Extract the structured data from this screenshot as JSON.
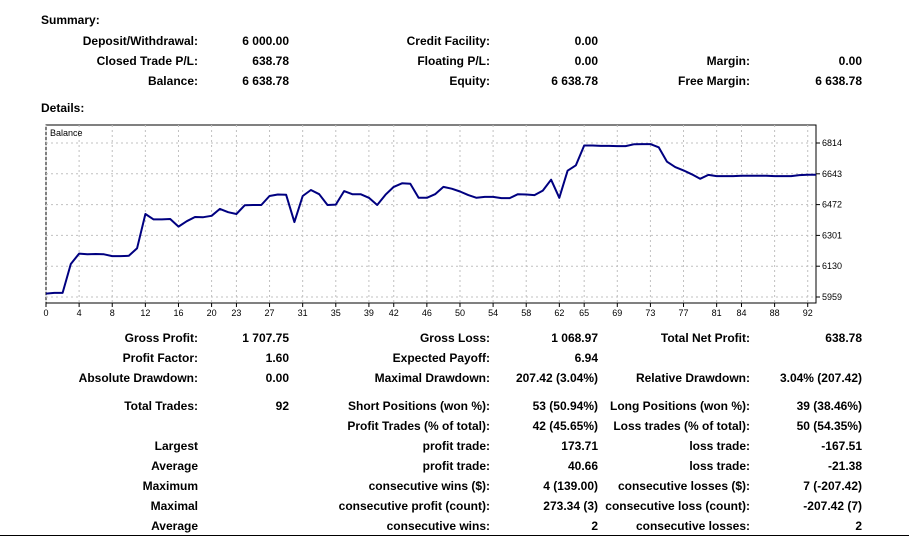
{
  "summary": {
    "title": "Summary:",
    "deposit_label": "Deposit/Withdrawal:",
    "deposit_value": "6 000.00",
    "credit_label": "Credit Facility:",
    "credit_value": "0.00",
    "closed_label": "Closed Trade P/L:",
    "closed_value": "638.78",
    "floating_label": "Floating P/L:",
    "floating_value": "0.00",
    "margin_label": "Margin:",
    "margin_value": "0.00",
    "balance_label": "Balance:",
    "balance_value": "6 638.78",
    "equity_label": "Equity:",
    "equity_value": "6 638.78",
    "free_margin_label": "Free Margin:",
    "free_margin_value": "6 638.78"
  },
  "details": {
    "title": "Details:"
  },
  "chart_data": {
    "type": "line",
    "title": "",
    "legend": "Balance",
    "color": "#000080",
    "x_ticks": [
      "0",
      "4",
      "8",
      "12",
      "16",
      "20",
      "23",
      "27",
      "31",
      "35",
      "39",
      "42",
      "46",
      "50",
      "54",
      "58",
      "62",
      "65",
      "69",
      "73",
      "77",
      "81",
      "84",
      "88",
      "92"
    ],
    "y_ticks": [
      "6814",
      "6643",
      "6472",
      "6301",
      "6130",
      "5959"
    ],
    "ylim": [
      5959,
      6814
    ],
    "xlim": [
      0,
      93
    ],
    "grid": true,
    "x": [
      0,
      1,
      2,
      3,
      4,
      5,
      6,
      7,
      8,
      9,
      10,
      11,
      12,
      13,
      14,
      15,
      16,
      17,
      18,
      19,
      20,
      21,
      22,
      23,
      24,
      25,
      26,
      27,
      28,
      29,
      30,
      31,
      32,
      33,
      34,
      35,
      36,
      37,
      38,
      39,
      40,
      41,
      42,
      43,
      44,
      45,
      46,
      47,
      48,
      49,
      50,
      51,
      52,
      53,
      54,
      55,
      56,
      57,
      58,
      59,
      60,
      61,
      62,
      63,
      64,
      65,
      66,
      67,
      68,
      69,
      70,
      71,
      72,
      73,
      74,
      75,
      76,
      77,
      78,
      79,
      80,
      81,
      82,
      83,
      84,
      85,
      86,
      87,
      88,
      89,
      90,
      91,
      92,
      93
    ],
    "values": [
      5978,
      5982,
      5982,
      6142,
      6200,
      6196,
      6198,
      6196,
      6186,
      6186,
      6188,
      6230,
      6420,
      6390,
      6390,
      6392,
      6350,
      6380,
      6403,
      6402,
      6410,
      6448,
      6430,
      6420,
      6468,
      6470,
      6470,
      6520,
      6528,
      6527,
      6375,
      6520,
      6553,
      6530,
      6470,
      6472,
      6547,
      6530,
      6530,
      6510,
      6470,
      6527,
      6570,
      6590,
      6588,
      6510,
      6510,
      6530,
      6570,
      6560,
      6545,
      6525,
      6510,
      6515,
      6515,
      6508,
      6508,
      6530,
      6528,
      6525,
      6550,
      6610,
      6510,
      6660,
      6690,
      6800,
      6800,
      6798,
      6798,
      6797,
      6797,
      6807,
      6808,
      6808,
      6790,
      6710,
      6680,
      6662,
      6640,
      6615,
      6637,
      6630,
      6630,
      6630,
      6632,
      6632,
      6632,
      6632,
      6630,
      6630,
      6630,
      6636,
      6638,
      6638
    ]
  },
  "stats": {
    "gross_profit_label": "Gross Profit:",
    "gross_profit_value": "1 707.75",
    "gross_loss_label": "Gross Loss:",
    "gross_loss_value": "1 068.97",
    "net_profit_label": "Total Net Profit:",
    "net_profit_value": "638.78",
    "profit_factor_label": "Profit Factor:",
    "profit_factor_value": "1.60",
    "expected_payoff_label": "Expected Payoff:",
    "expected_payoff_value": "6.94",
    "abs_drawdown_label": "Absolute Drawdown:",
    "abs_drawdown_value": "0.00",
    "max_drawdown_label": "Maximal Drawdown:",
    "max_drawdown_value": "207.42 (3.04%)",
    "rel_drawdown_label": "Relative Drawdown:",
    "rel_drawdown_value": "3.04% (207.42)",
    "total_trades_label": "Total Trades:",
    "total_trades_value": "92",
    "short_label": "Short Positions (won %):",
    "short_value": "53 (50.94%)",
    "long_label": "Long Positions (won %):",
    "long_value": "39 (38.46%)",
    "profit_trades_label": "Profit Trades (% of total):",
    "profit_trades_value": "42 (45.65%)",
    "loss_trades_label": "Loss trades (% of total):",
    "loss_trades_value": "50 (54.35%)",
    "largest_label": "Largest",
    "largest_profit_label": "profit trade:",
    "largest_profit_value": "173.71",
    "largest_loss_label": "loss trade:",
    "largest_loss_value": "-167.51",
    "average_label": "Average",
    "average_profit_label": "profit trade:",
    "average_profit_value": "40.66",
    "average_loss_label": "loss trade:",
    "average_loss_value": "-21.38",
    "maximum_label": "Maximum",
    "max_cons_wins_label": "consecutive wins ($):",
    "max_cons_wins_value": "4 (139.00)",
    "max_cons_losses_label": "consecutive losses ($):",
    "max_cons_losses_value": "7 (-207.42)",
    "maximal_label": "Maximal",
    "maximal_profit_label": "consecutive profit (count):",
    "maximal_profit_value": "273.34 (3)",
    "maximal_loss_label": "consecutive loss (count):",
    "maximal_loss_value": "-207.42 (7)",
    "average2_label": "Average",
    "avg_cons_wins_label": "consecutive wins:",
    "avg_cons_wins_value": "2",
    "avg_cons_losses_label": "consecutive losses:",
    "avg_cons_losses_value": "2"
  }
}
